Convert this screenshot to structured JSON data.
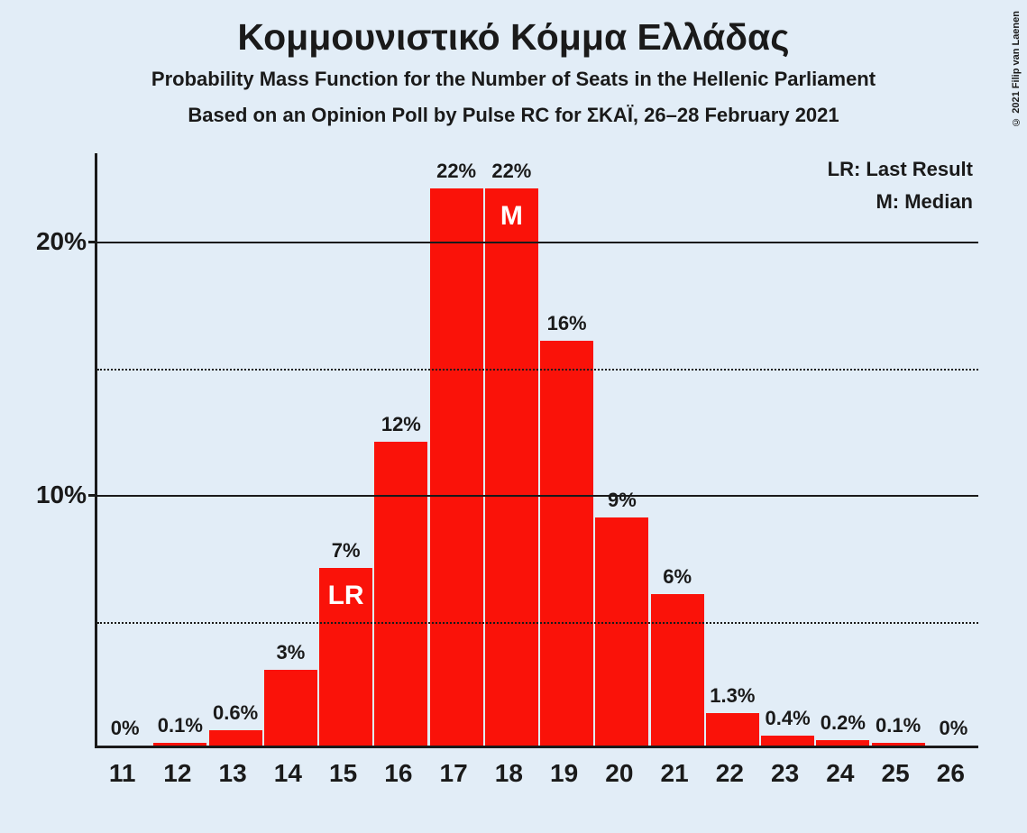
{
  "title": "Κομμουνιστικό Κόμμα Ελλάδας",
  "subtitle1": "Probability Mass Function for the Number of Seats in the Hellenic Parliament",
  "subtitle2": "Based on an Opinion Poll by Pulse RC for ΣΚΑΪ, 26–28 February 2021",
  "copyright": "© 2021 Filip van Laenen",
  "legend": {
    "lr": "LR: Last Result",
    "m": "M: Median"
  },
  "chart": {
    "type": "bar",
    "bar_color": "#fa1209",
    "background_color": "#e2edf7",
    "axis_color": "#1a1a1a",
    "grid_solid_color": "#1a1a1a",
    "grid_dotted_color": "#1a1a1a",
    "ylim_max_percent": 23.5,
    "y_major_ticks": [
      10,
      20
    ],
    "y_minor_ticks": [
      5,
      15
    ],
    "ytick_suffix": "%",
    "x_categories": [
      "11",
      "12",
      "13",
      "14",
      "15",
      "16",
      "17",
      "18",
      "19",
      "20",
      "21",
      "22",
      "23",
      "24",
      "25",
      "26"
    ],
    "values_percent": [
      0,
      0.1,
      0.6,
      3,
      7,
      12,
      22,
      22,
      16,
      9,
      6,
      1.3,
      0.4,
      0.2,
      0.1,
      0
    ],
    "value_labels": [
      "0%",
      "0.1%",
      "0.6%",
      "3%",
      "7%",
      "12%",
      "22%",
      "22%",
      "16%",
      "9%",
      "6%",
      "1.3%",
      "0.4%",
      "0.2%",
      "0.1%",
      "0%"
    ],
    "annotations": {
      "15": "LR",
      "18": "M"
    },
    "bar_width_ratio": 0.96,
    "title_fontsize": 41,
    "subtitle_fontsize": 22,
    "axis_label_fontsize": 28,
    "value_label_fontsize": 22,
    "annotation_fontsize": 30,
    "annotation_color": "#ffffff"
  }
}
